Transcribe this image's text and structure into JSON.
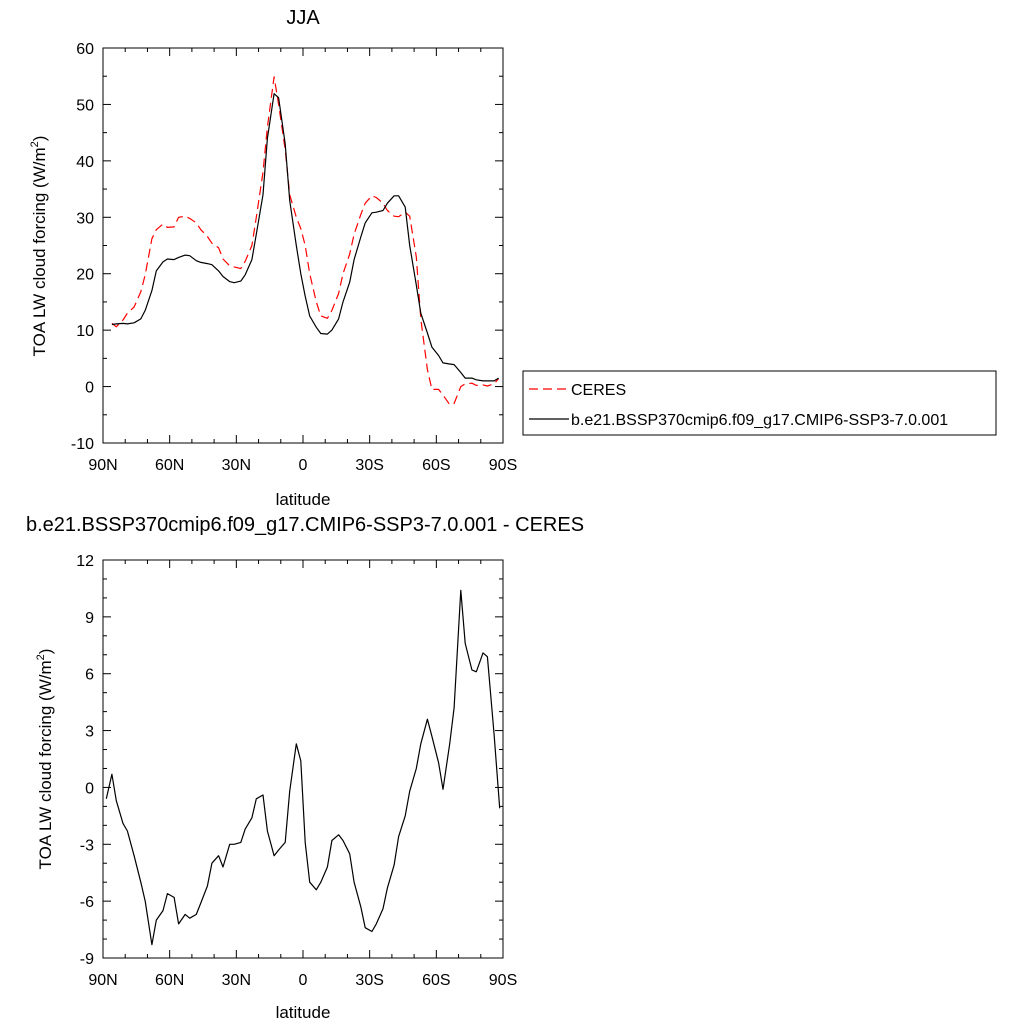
{
  "chart_data": [
    {
      "type": "line",
      "title": "JJA",
      "xlabel": "latitude",
      "ylabel": "TOA LW cloud forcing (W/m",
      "ylabel_sup": "2",
      "ylabel_close": ")",
      "xlim": [
        90,
        -90
      ],
      "ylim": [
        -10,
        60
      ],
      "x_ticks": [
        90,
        60,
        30,
        0,
        -30,
        -60,
        -90
      ],
      "x_tick_labels": [
        "90N",
        "60N",
        "30N",
        "0",
        "30S",
        "60S",
        "90S"
      ],
      "y_ticks": [
        -10,
        0,
        10,
        20,
        30,
        40,
        50,
        60
      ],
      "y_tick_labels": [
        "-10",
        "0",
        "10",
        "20",
        "30",
        "40",
        "50",
        "60"
      ],
      "grid": false,
      "legend_placement": "right",
      "series": [
        {
          "name": "CERES",
          "color": "#ff0000",
          "dash": "dashed",
          "x": [
            86,
            84,
            81,
            79,
            76,
            73,
            71,
            68,
            66,
            63,
            61,
            58,
            56,
            53,
            51,
            48,
            46,
            43,
            41,
            38,
            36,
            33,
            31,
            28,
            26,
            23,
            21,
            18,
            16,
            13,
            11,
            8,
            6,
            3,
            1,
            -1,
            -3,
            -6,
            -8,
            -11,
            -13,
            -16,
            -18,
            -21,
            -23,
            -26,
            -28,
            -31,
            -33,
            -36,
            -38,
            -41,
            -43,
            -46,
            -48,
            -51,
            -53,
            -56,
            -58,
            -61,
            -63,
            -66,
            -68,
            -71,
            -73,
            -76,
            -78,
            -81,
            -83,
            -86,
            -88
          ],
          "y": [
            11.2,
            10.6,
            11.8,
            13.0,
            14.1,
            16.8,
            19.8,
            26.2,
            27.8,
            28.8,
            28.2,
            28.3,
            30.0,
            30.2,
            29.8,
            29.0,
            27.8,
            26.6,
            25.4,
            24.6,
            22.6,
            21.4,
            21.2,
            20.9,
            22.2,
            25.0,
            30.0,
            38.0,
            46.0,
            54.9,
            50.0,
            42.0,
            34.0,
            30.0,
            28.0,
            25.0,
            20.0,
            15.0,
            12.5,
            12.1,
            13.5,
            16.5,
            20.0,
            23.5,
            27.0,
            30.5,
            32.5,
            33.8,
            33.5,
            32.5,
            31.2,
            30.2,
            30.1,
            30.9,
            30.2,
            23.0,
            12.0,
            3.0,
            -0.5,
            -0.5,
            -1.5,
            -3.2,
            -3.0,
            0.0,
            0.5,
            0.6,
            0.2,
            0.3,
            0.1,
            0.5,
            1.4
          ]
        },
        {
          "name": "b.e21.BSSP370cmip6.f09_g17.CMIP6-SSP3-7.0.001",
          "color": "#000000",
          "dash": "solid",
          "x": [
            86,
            84,
            81,
            79,
            76,
            73,
            71,
            68,
            66,
            63,
            61,
            58,
            56,
            53,
            51,
            48,
            46,
            43,
            41,
            38,
            36,
            33,
            31,
            28,
            26,
            23,
            21,
            18,
            16,
            13,
            11,
            8,
            6,
            3,
            1,
            -1,
            -3,
            -6,
            -8,
            -11,
            -13,
            -16,
            -18,
            -21,
            -23,
            -26,
            -28,
            -31,
            -33,
            -36,
            -38,
            -41,
            -43,
            -46,
            -48,
            -51,
            -53,
            -56,
            -58,
            -61,
            -63,
            -66,
            -68,
            -71,
            -73,
            -76,
            -78,
            -81,
            -83,
            -86,
            -88
          ],
          "y": [
            11.0,
            11.1,
            11.2,
            11.1,
            11.3,
            12.0,
            13.5,
            17.0,
            20.5,
            22.1,
            22.6,
            22.5,
            22.9,
            23.3,
            23.2,
            22.3,
            22.0,
            21.8,
            21.6,
            20.5,
            19.5,
            18.6,
            18.4,
            18.7,
            19.8,
            22.5,
            27.0,
            34.0,
            44.0,
            51.9,
            51.2,
            43.0,
            33.0,
            25.0,
            20.0,
            16.0,
            12.5,
            10.5,
            9.4,
            9.3,
            10.0,
            12.0,
            15.0,
            18.5,
            22.5,
            26.5,
            29.0,
            30.8,
            30.9,
            31.2,
            32.5,
            33.8,
            33.8,
            31.8,
            25.0,
            18.0,
            13.0,
            9.5,
            7.0,
            5.5,
            4.2,
            4.0,
            3.9,
            2.5,
            1.5,
            1.5,
            1.2,
            1.0,
            1.0,
            1.0,
            1.5
          ]
        }
      ]
    },
    {
      "type": "line",
      "title": "b.e21.BSSP370cmip6.f09_g17.CMIP6-SSP3-7.0.001 - CERES",
      "xlabel": "latitude",
      "ylabel": "TOA LW cloud forcing (W/m",
      "ylabel_sup": "2",
      "ylabel_close": ")",
      "xlim": [
        90,
        -90
      ],
      "ylim": [
        -9,
        12
      ],
      "x_ticks": [
        90,
        60,
        30,
        0,
        -30,
        -60,
        -90
      ],
      "x_tick_labels": [
        "90N",
        "60N",
        "30N",
        "0",
        "30S",
        "60S",
        "90S"
      ],
      "y_ticks": [
        -9,
        -6,
        -3,
        0,
        3,
        6,
        9,
        12
      ],
      "y_tick_labels": [
        "-9",
        "-6",
        "-3",
        "0",
        "3",
        "6",
        "9",
        "12"
      ],
      "grid": false,
      "series": [
        {
          "color": "#000000",
          "dash": "solid",
          "x": [
            88.5,
            86,
            84,
            81,
            79,
            76,
            73,
            71,
            68,
            66,
            63,
            61,
            58,
            56,
            53,
            51,
            48,
            46,
            43,
            41,
            38,
            36,
            33,
            31,
            28,
            26,
            23,
            21,
            18,
            16,
            13,
            11,
            8,
            6,
            3,
            1,
            -1,
            -3,
            -6,
            -8,
            -11,
            -13,
            -16,
            -18,
            -21,
            -23,
            -26,
            -28,
            -31,
            -33,
            -36,
            -38,
            -41,
            -43,
            -46,
            -48,
            -51,
            -53,
            -56,
            -58,
            -61,
            -63,
            -66,
            -68,
            -71,
            -73,
            -76,
            -78,
            -81,
            -83,
            -86,
            -88.5
          ],
          "y": [
            -0.6,
            0.7,
            -0.7,
            -1.9,
            -2.3,
            -3.6,
            -5.0,
            -6.0,
            -8.3,
            -7.0,
            -6.5,
            -5.6,
            -5.8,
            -7.2,
            -6.7,
            -6.9,
            -6.7,
            -6.1,
            -5.2,
            -4.0,
            -3.6,
            -4.2,
            -3.0,
            -3.0,
            -2.9,
            -2.2,
            -1.6,
            -0.6,
            -0.4,
            -2.3,
            -3.6,
            -3.3,
            -2.9,
            -0.2,
            2.3,
            1.4,
            -2.9,
            -5.0,
            -5.4,
            -5.0,
            -4.2,
            -2.8,
            -2.5,
            -2.8,
            -3.5,
            -5.0,
            -6.3,
            -7.4,
            -7.6,
            -7.2,
            -6.4,
            -5.3,
            -4.1,
            -2.6,
            -1.5,
            -0.2,
            1.0,
            2.3,
            3.6,
            2.7,
            1.3,
            -0.1,
            2.3,
            4.2,
            10.4,
            7.6,
            6.2,
            6.1,
            7.1,
            6.9,
            2.8,
            -1.1
          ]
        }
      ]
    }
  ]
}
